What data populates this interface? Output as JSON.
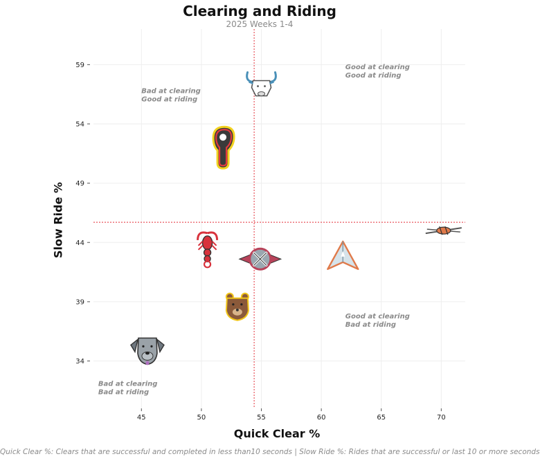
{
  "chart_data": {
    "type": "scatter",
    "title": "Clearing and Riding",
    "subtitle": "2025 Weeks 1-4",
    "xlabel": "Quick Clear %",
    "ylabel": "Slow Ride %",
    "footer": "Quick Clear %: Clears that are successful and completed in less than10 seconds  |  Slow Ride %: Rides that are successful or last 10 or more seconds",
    "xlim": [
      41,
      72
    ],
    "ylim": [
      30,
      62
    ],
    "xticks": [
      45,
      50,
      55,
      60,
      65,
      70
    ],
    "yticks": [
      34,
      39,
      44,
      49,
      54,
      59
    ],
    "grid": true,
    "reference_lines": {
      "x": 54.4,
      "y": 45.7
    },
    "quadrant_labels": [
      {
        "text": [
          "Good at clearing",
          "Good at riding"
        ],
        "x": 62,
        "y": 58.6
      },
      {
        "text": [
          "Bad at clearing",
          "Good at riding"
        ],
        "x": 45,
        "y": 56.6
      },
      {
        "text": [
          "Good at clearing",
          "Bad at riding"
        ],
        "x": 62,
        "y": 37.6
      },
      {
        "text": [
          "Bad at clearing",
          "Bad at riding"
        ],
        "x": 41.4,
        "y": 31.9
      }
    ],
    "points": [
      {
        "team": "bull",
        "x": 55.0,
        "y": 57.3,
        "icon": "bull-logo-icon",
        "color": "#4a90b8"
      },
      {
        "team": "lacrosse-head",
        "x": 51.8,
        "y": 52.0,
        "icon": "lacrosse-head-logo-icon",
        "color": "#e23a3f"
      },
      {
        "team": "barbed-wire",
        "x": 70.2,
        "y": 45.0,
        "icon": "barbed-wire-logo-icon",
        "color": "#e07a4a"
      },
      {
        "team": "scorpion",
        "x": 50.5,
        "y": 43.5,
        "icon": "scorpion-logo-icon",
        "color": "#d8323c"
      },
      {
        "team": "crossed-sticks",
        "x": 54.9,
        "y": 42.6,
        "icon": "crossed-sticks-logo-icon",
        "color": "#b8435a"
      },
      {
        "team": "arrow",
        "x": 61.8,
        "y": 42.8,
        "icon": "arrow-logo-icon",
        "color": "#e07a4a"
      },
      {
        "team": "bear",
        "x": 53.0,
        "y": 38.6,
        "icon": "bear-logo-icon",
        "color": "#8b5a3a"
      },
      {
        "team": "dog",
        "x": 45.5,
        "y": 35.0,
        "icon": "dog-logo-icon",
        "color": "#6f7880"
      }
    ],
    "colors": {
      "reference_line": "#e8545c",
      "grid": "#eeeeee"
    }
  }
}
